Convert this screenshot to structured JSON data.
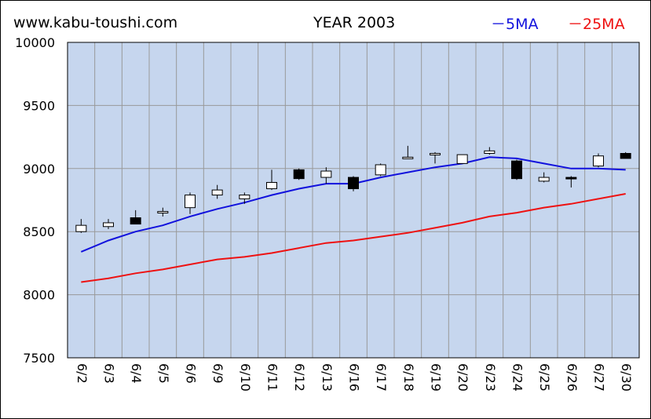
{
  "header": {
    "site": "www.kabu-toushi.com",
    "title": "YEAR 2003",
    "legend_5ma": "－5MA",
    "legend_25ma": "－25MA"
  },
  "colors": {
    "plot_bg": "#c6d6ee",
    "grid": "#999999",
    "ma5": "#1111dd",
    "ma25": "#ee1111",
    "up_candle": "#ffffff",
    "down_candle": "#000000"
  },
  "chart_data": {
    "type": "candlestick",
    "title": "YEAR 2003",
    "ylim": [
      7500,
      10000
    ],
    "y_ticks": [
      7500,
      8000,
      8500,
      9000,
      9500,
      10000
    ],
    "grid": true,
    "legend_position": "top-right",
    "categories": [
      "6/2",
      "6/3",
      "6/4",
      "6/5",
      "6/6",
      "6/9",
      "6/10",
      "6/11",
      "6/12",
      "6/13",
      "6/16",
      "6/17",
      "6/18",
      "6/19",
      "6/20",
      "6/23",
      "6/24",
      "6/25",
      "6/26",
      "6/27",
      "6/30"
    ],
    "candles": [
      {
        "open": 8500,
        "high": 8600,
        "low": 8490,
        "close": 8550
      },
      {
        "open": 8540,
        "high": 8600,
        "low": 8520,
        "close": 8570
      },
      {
        "open": 8610,
        "high": 8670,
        "low": 8560,
        "close": 8560
      },
      {
        "open": 8650,
        "high": 8690,
        "low": 8620,
        "close": 8660
      },
      {
        "open": 8690,
        "high": 8810,
        "low": 8640,
        "close": 8790
      },
      {
        "open": 8790,
        "high": 8870,
        "low": 8760,
        "close": 8830
      },
      {
        "open": 8760,
        "high": 8810,
        "low": 8720,
        "close": 8790
      },
      {
        "open": 8840,
        "high": 8990,
        "low": 8830,
        "close": 8890
      },
      {
        "open": 8990,
        "high": 9000,
        "low": 8910,
        "close": 8920
      },
      {
        "open": 8930,
        "high": 9010,
        "low": 8880,
        "close": 8980
      },
      {
        "open": 8930,
        "high": 8940,
        "low": 8820,
        "close": 8840
      },
      {
        "open": 8950,
        "high": 9040,
        "low": 8940,
        "close": 9030
      },
      {
        "open": 9090,
        "high": 9180,
        "low": 9080,
        "close": 9090
      },
      {
        "open": 9110,
        "high": 9130,
        "low": 9040,
        "close": 9120
      },
      {
        "open": 9040,
        "high": 9110,
        "low": 9040,
        "close": 9110
      },
      {
        "open": 9120,
        "high": 9170,
        "low": 9110,
        "close": 9140
      },
      {
        "open": 9060,
        "high": 9070,
        "low": 8910,
        "close": 8920
      },
      {
        "open": 8900,
        "high": 8970,
        "low": 8890,
        "close": 8930
      },
      {
        "open": 8930,
        "high": 8940,
        "low": 8850,
        "close": 8920
      },
      {
        "open": 9020,
        "high": 9120,
        "low": 9010,
        "close": 9100
      },
      {
        "open": 9120,
        "high": 9130,
        "low": 9080,
        "close": 9080
      }
    ],
    "series": [
      {
        "name": "5MA",
        "values": [
          8340,
          8430,
          8500,
          8550,
          8620,
          8680,
          8730,
          8790,
          8840,
          8880,
          8880,
          8930,
          8970,
          9010,
          9040,
          9090,
          9080,
          9040,
          9000,
          9000,
          8990
        ]
      },
      {
        "name": "25MA",
        "values": [
          8100,
          8130,
          8170,
          8200,
          8240,
          8280,
          8300,
          8330,
          8370,
          8410,
          8430,
          8460,
          8490,
          8530,
          8570,
          8620,
          8650,
          8690,
          8720,
          8760,
          8800
        ]
      }
    ]
  }
}
